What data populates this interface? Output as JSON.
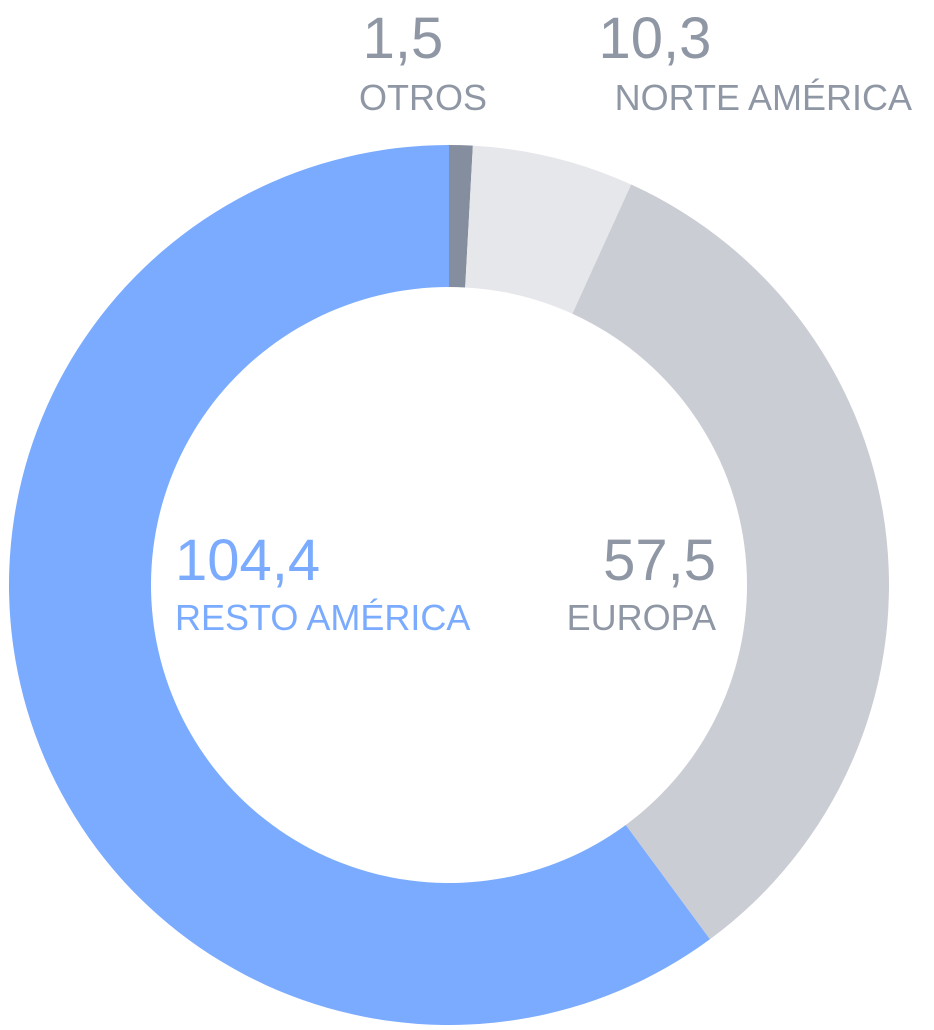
{
  "chart_data": {
    "type": "pie",
    "donut": true,
    "slices": [
      {
        "label": "OTROS",
        "value_text": "1,5",
        "value": 1.5,
        "color": "#858e9e",
        "label_color": "#8f97a5"
      },
      {
        "label": "NORTE AMÉRICA",
        "value_text": "10,3",
        "value": 10.3,
        "color": "#e6e7eb",
        "label_color": "#8f97a5"
      },
      {
        "label": "EUROPA",
        "value_text": "57,5",
        "value": 57.5,
        "color": "#cbcdd5",
        "label_color": "#8f97a5"
      },
      {
        "label": "RESTO AMÉRICA",
        "value_text": "104,4",
        "value": 104.4,
        "color": "#7aabff",
        "label_color": "#7aabff"
      }
    ]
  }
}
